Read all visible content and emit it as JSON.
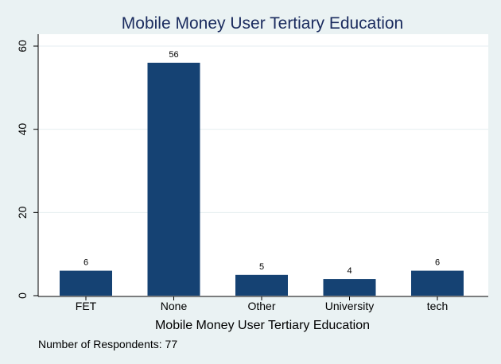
{
  "chart_data": {
    "type": "bar",
    "title": "Mobile Money User Tertiary Education",
    "xlabel": "Mobile Money User Tertiary Education",
    "ylabel": "",
    "categories": [
      "FET",
      "None",
      "Other",
      "University",
      "tech"
    ],
    "values": [
      6,
      56,
      5,
      4,
      6
    ],
    "data_labels": [
      "6",
      "56",
      "5",
      "4",
      "6"
    ],
    "ylim": [
      0,
      60
    ],
    "yticks": [
      0,
      20,
      40,
      60
    ],
    "grid": true,
    "bar_color": "#154273",
    "note": "Number of Respondents: 77"
  }
}
